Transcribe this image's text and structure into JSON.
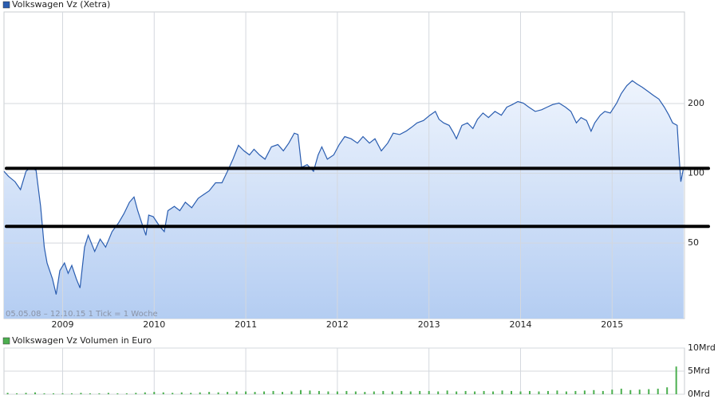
{
  "chart_data": [
    {
      "type": "line",
      "log_scale": true,
      "grid": true,
      "annotation": "05.05.08 – 12.10.15    1 Tick = 1 Woche",
      "x": [
        2008.36,
        2008.41,
        2008.48,
        2008.54,
        2008.6,
        2008.65,
        2008.71,
        2008.76,
        2008.8,
        2008.83,
        2008.89,
        2008.93,
        2008.97,
        2009.02,
        2009.06,
        2009.1,
        2009.15,
        2009.19,
        2009.24,
        2009.28,
        2009.35,
        2009.41,
        2009.47,
        2009.54,
        2009.61,
        2009.67,
        2009.73,
        2009.78,
        2009.82,
        2009.87,
        2009.91,
        2009.94,
        2009.99,
        2010.06,
        2010.11,
        2010.15,
        2010.22,
        2010.28,
        2010.34,
        2010.41,
        2010.48,
        2010.54,
        2010.6,
        2010.67,
        2010.74,
        2010.8,
        2010.86,
        2010.92,
        2010.98,
        2011.04,
        2011.09,
        2011.15,
        2011.21,
        2011.28,
        2011.35,
        2011.41,
        2011.47,
        2011.53,
        2011.57,
        2011.61,
        2011.67,
        2011.74,
        2011.79,
        2011.83,
        2011.89,
        2011.96,
        2012.02,
        2012.08,
        2012.15,
        2012.22,
        2012.28,
        2012.35,
        2012.41,
        2012.48,
        2012.55,
        2012.61,
        2012.68,
        2012.75,
        2012.81,
        2012.87,
        2012.94,
        2013.01,
        2013.07,
        2013.11,
        2013.16,
        2013.22,
        2013.27,
        2013.3,
        2013.36,
        2013.42,
        2013.48,
        2013.53,
        2013.59,
        2013.65,
        2013.72,
        2013.79,
        2013.85,
        2013.91,
        2013.97,
        2014.03,
        2014.09,
        2014.16,
        2014.23,
        2014.29,
        2014.35,
        2014.42,
        2014.49,
        2014.55,
        2014.61,
        2014.66,
        2014.72,
        2014.77,
        2014.81,
        2014.87,
        2014.92,
        2014.98,
        2015.05,
        2015.1,
        2015.16,
        2015.22,
        2015.27,
        2015.33,
        2015.39,
        2015.45,
        2015.51,
        2015.57,
        2015.62,
        2015.66,
        2015.71,
        2015.73,
        2015.75,
        2015.78
      ],
      "series": [
        {
          "name": "Volkswagen Vz (Xetra)",
          "color": "#2a5db0",
          "values": [
            102,
            97,
            92,
            85,
            102,
            106,
            103,
            72,
            48,
            41,
            35,
            30,
            38,
            41,
            37,
            40,
            35,
            32,
            48,
            54,
            46,
            52,
            48,
            56,
            61,
            67,
            75,
            79,
            69,
            60,
            54,
            66,
            65,
            59,
            56,
            69,
            72,
            69,
            75,
            71,
            78,
            81,
            84,
            91,
            91,
            102,
            115,
            132,
            125,
            120,
            127,
            120,
            115,
            130,
            133,
            125,
            135,
            149,
            147,
            106,
            109,
            102,
            120,
            130,
            115,
            120,
            133,
            144,
            141,
            135,
            144,
            135,
            141,
            125,
            135,
            149,
            147,
            152,
            158,
            165,
            169,
            178,
            185,
            171,
            165,
            161,
            149,
            141,
            161,
            165,
            156,
            171,
            182,
            174,
            185,
            178,
            193,
            198,
            204,
            201,
            193,
            185,
            188,
            193,
            198,
            201,
            193,
            185,
            165,
            174,
            169,
            152,
            165,
            178,
            185,
            182,
            201,
            221,
            239,
            251,
            243,
            235,
            226,
            217,
            209,
            193,
            178,
            165,
            161,
            120,
            92,
            106
          ]
        }
      ],
      "xlim": [
        2008.36,
        2015.79
      ],
      "xticks": [
        2009,
        2010,
        2011,
        2012,
        2013,
        2014,
        2015
      ],
      "ylim": [
        23.6,
        497
      ],
      "yticks": [
        50,
        100,
        200
      ],
      "hlines": [
        105,
        59
      ],
      "hline_color": "#000000"
    },
    {
      "type": "bar",
      "grid": true,
      "x": [
        2008.4,
        2008.5,
        2008.6,
        2008.7,
        2008.8,
        2008.9,
        2009.0,
        2009.1,
        2009.2,
        2009.3,
        2009.4,
        2009.5,
        2009.6,
        2009.7,
        2009.8,
        2009.9,
        2010.0,
        2010.1,
        2010.2,
        2010.3,
        2010.4,
        2010.5,
        2010.6,
        2010.7,
        2010.8,
        2010.9,
        2011.0,
        2011.1,
        2011.2,
        2011.3,
        2011.4,
        2011.5,
        2011.6,
        2011.7,
        2011.8,
        2011.9,
        2012.0,
        2012.1,
        2012.2,
        2012.3,
        2012.4,
        2012.5,
        2012.6,
        2012.7,
        2012.8,
        2012.9,
        2013.0,
        2013.1,
        2013.2,
        2013.3,
        2013.4,
        2013.5,
        2013.6,
        2013.7,
        2013.8,
        2013.9,
        2014.0,
        2014.1,
        2014.2,
        2014.3,
        2014.4,
        2014.5,
        2014.6,
        2014.7,
        2014.8,
        2014.9,
        2015.0,
        2015.1,
        2015.2,
        2015.3,
        2015.4,
        2015.5,
        2015.6,
        2015.7
      ],
      "series": [
        {
          "name": "Volkswagen Vz Volumen in Euro",
          "color": "#4caf50",
          "values": [
            0.3,
            0.2,
            0.3,
            0.4,
            0.2,
            0.2,
            0.2,
            0.2,
            0.3,
            0.2,
            0.2,
            0.3,
            0.2,
            0.2,
            0.3,
            0.4,
            0.5,
            0.4,
            0.3,
            0.4,
            0.3,
            0.4,
            0.5,
            0.4,
            0.5,
            0.6,
            0.6,
            0.5,
            0.6,
            0.7,
            0.5,
            0.6,
            0.9,
            0.8,
            0.7,
            0.6,
            0.6,
            0.7,
            0.6,
            0.5,
            0.6,
            0.7,
            0.6,
            0.7,
            0.6,
            0.7,
            0.7,
            0.6,
            0.8,
            0.6,
            0.7,
            0.6,
            0.7,
            0.6,
            0.8,
            0.7,
            0.6,
            0.7,
            0.6,
            0.7,
            0.8,
            0.6,
            0.7,
            0.8,
            0.9,
            0.7,
            1.0,
            1.2,
            0.9,
            1.0,
            1.1,
            1.2,
            1.5,
            6.0
          ]
        }
      ],
      "xlim": [
        2008.36,
        2015.79
      ],
      "xticks": [
        2009,
        2010,
        2011,
        2012,
        2013,
        2014,
        2015
      ],
      "ylim": [
        0,
        10
      ],
      "yticks": [
        {
          "value": 10,
          "label": "10Mrd"
        },
        {
          "value": 5,
          "label": "5Mrd"
        },
        {
          "value": 0,
          "label": "0Mrd"
        }
      ]
    }
  ]
}
